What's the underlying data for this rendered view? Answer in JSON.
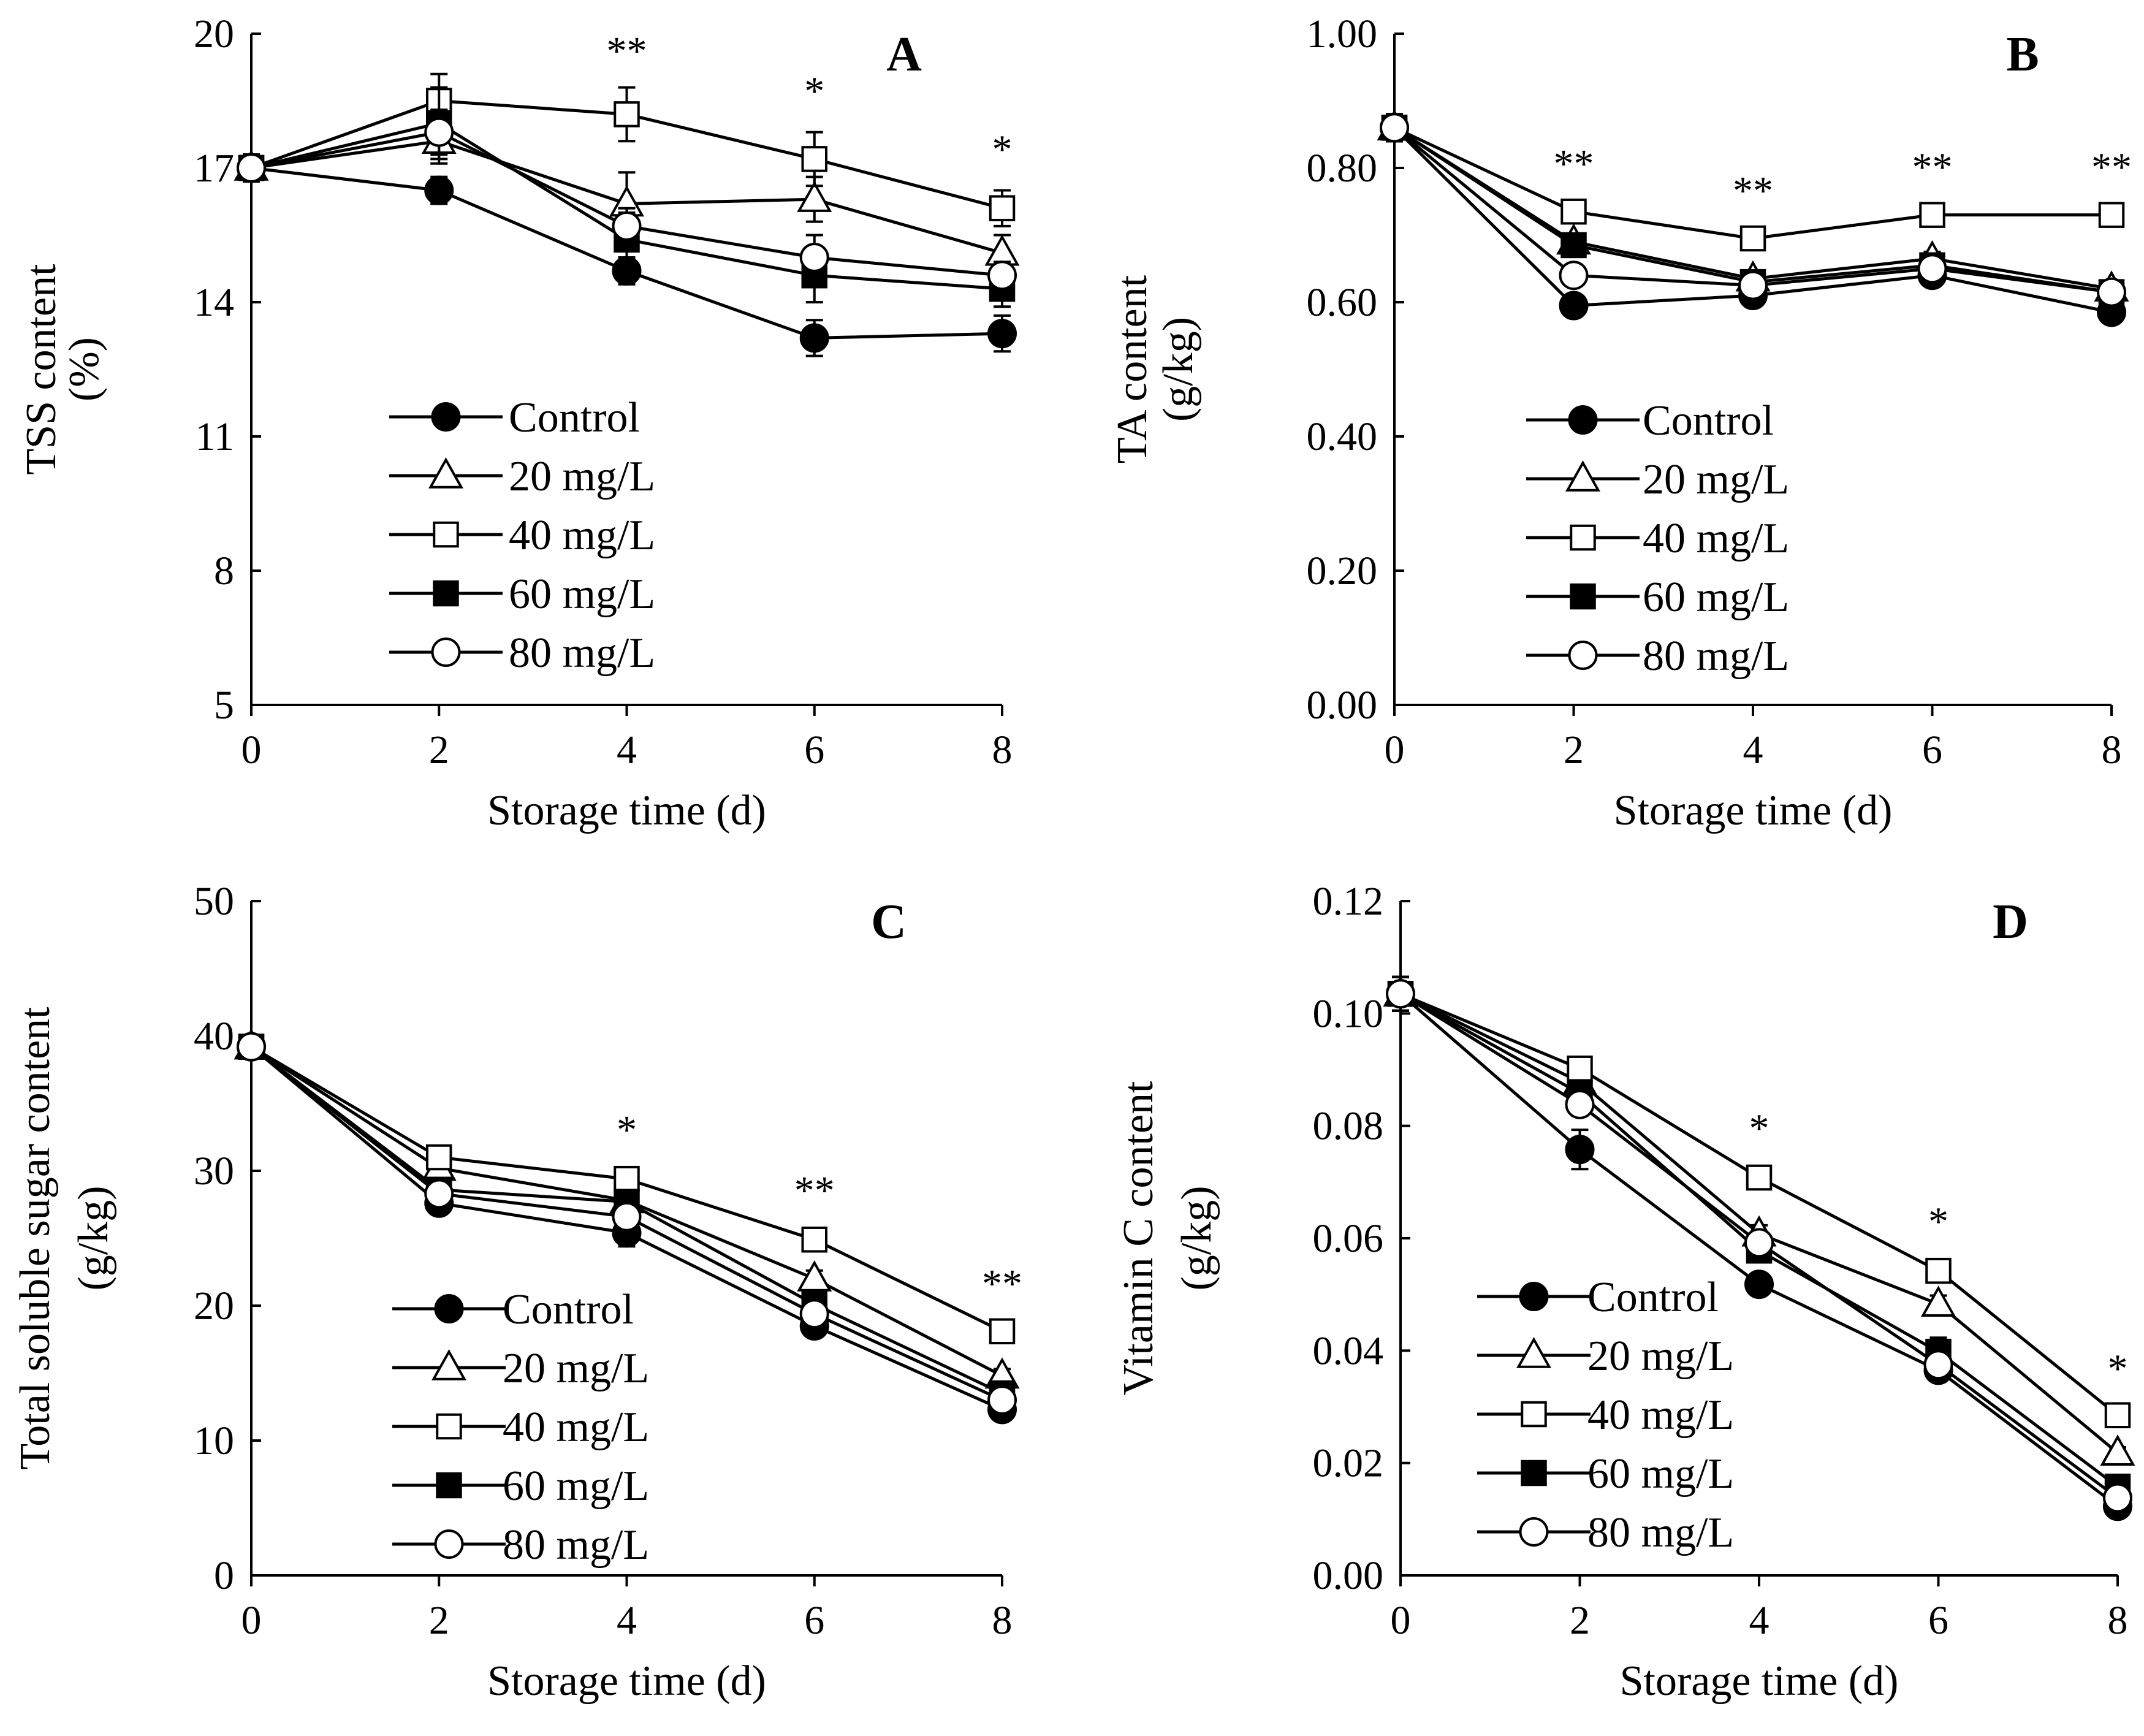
{
  "figure": {
    "series_style": [
      {
        "name": "Control",
        "marker": "circle",
        "filled": true
      },
      {
        "name": "20 mg/L",
        "marker": "triangle",
        "filled": false
      },
      {
        "name": "40 mg/L",
        "marker": "square",
        "filled": false
      },
      {
        "name": "60 mg/L",
        "marker": "square",
        "filled": true
      },
      {
        "name": "80 mg/L",
        "marker": "circle",
        "filled": false
      }
    ],
    "line_color": "#000000",
    "background": "#ffffff"
  },
  "chart_data": [
    {
      "type": "line",
      "panel": "A",
      "xlabel": "Storage time (d)",
      "ylabel_lines": [
        "TSS content",
        "(%)"
      ],
      "x": [
        0,
        2,
        4,
        6,
        8
      ],
      "xlim": [
        0,
        8
      ],
      "xticks": [
        "0",
        "2",
        "4",
        "6",
        "8"
      ],
      "ylim": [
        5,
        20
      ],
      "yticks": [
        5,
        8,
        11,
        14,
        17,
        20
      ],
      "ytick_labels": [
        "5",
        "8",
        "11",
        "14",
        "17",
        "20"
      ],
      "series": [
        {
          "name": "Control",
          "values": [
            17.0,
            16.5,
            14.7,
            13.2,
            13.3
          ],
          "errors": [
            0.3,
            0.3,
            0.3,
            0.4,
            0.4
          ]
        },
        {
          "name": "20 mg/L",
          "values": [
            17.0,
            17.6,
            16.2,
            16.3,
            15.1
          ],
          "errors": [
            0.3,
            0.5,
            0.7,
            0.5,
            0.4
          ]
        },
        {
          "name": "40 mg/L",
          "values": [
            17.0,
            18.5,
            18.2,
            17.2,
            16.1
          ],
          "errors": [
            0.3,
            0.6,
            0.6,
            0.6,
            0.4
          ]
        },
        {
          "name": "60 mg/L",
          "values": [
            17.0,
            18.0,
            15.4,
            14.6,
            14.3
          ],
          "errors": [
            0.3,
            0.8,
            0.6,
            0.6,
            0.4
          ]
        },
        {
          "name": "80 mg/L",
          "values": [
            17.0,
            17.8,
            15.7,
            15.0,
            14.6
          ],
          "errors": [
            0.3,
            0.5,
            0.4,
            0.5,
            0.3
          ]
        }
      ],
      "significance": [
        "",
        "",
        "**",
        "*",
        "*"
      ],
      "legend_position": "lower-left"
    },
    {
      "type": "line",
      "panel": "B",
      "xlabel": "Storage time (d)",
      "ylabel_lines": [
        "TA content",
        "(g/kg)"
      ],
      "x": [
        0,
        2,
        4,
        6,
        8
      ],
      "xlim": [
        0,
        8
      ],
      "xticks": [
        "0",
        "2",
        "4",
        "6",
        "8"
      ],
      "ylim": [
        0,
        1
      ],
      "yticks": [
        0,
        0.2,
        0.4,
        0.6,
        0.8,
        1.0
      ],
      "ytick_labels": [
        "0.00",
        "0.20",
        "0.40",
        "0.60",
        "0.80",
        "1.00"
      ],
      "series": [
        {
          "name": "Control",
          "values": [
            0.86,
            0.595,
            0.61,
            0.64,
            0.585
          ],
          "errors": [
            0.02,
            0.01,
            0.01,
            0.01,
            0.01
          ]
        },
        {
          "name": "20 mg/L",
          "values": [
            0.86,
            0.69,
            0.635,
            0.665,
            0.62
          ],
          "errors": [
            0.02,
            0.01,
            0.01,
            0.01,
            0.01
          ]
        },
        {
          "name": "40 mg/L",
          "values": [
            0.86,
            0.735,
            0.695,
            0.73,
            0.73
          ],
          "errors": [
            0.02,
            0.01,
            0.01,
            0.01,
            0.01
          ]
        },
        {
          "name": "60 mg/L",
          "values": [
            0.86,
            0.685,
            0.63,
            0.655,
            0.615
          ],
          "errors": [
            0.02,
            0.01,
            0.01,
            0.01,
            0.01
          ]
        },
        {
          "name": "80 mg/L",
          "values": [
            0.86,
            0.64,
            0.625,
            0.65,
            0.615
          ],
          "errors": [
            0.02,
            0.01,
            0.01,
            0.01,
            0.01
          ]
        }
      ],
      "significance": [
        "",
        "**",
        "**",
        "**",
        "**"
      ],
      "legend_position": "lower-center"
    },
    {
      "type": "line",
      "panel": "C",
      "xlabel": "Storage time (d)",
      "ylabel_lines": [
        "Total soluble sugar content",
        "(g/kg)"
      ],
      "x": [
        0,
        2,
        4,
        6,
        8
      ],
      "xlim": [
        0,
        8
      ],
      "xticks": [
        "0",
        "2",
        "4",
        "6",
        "8"
      ],
      "ylim": [
        0,
        50
      ],
      "yticks": [
        0,
        10,
        20,
        30,
        40,
        50
      ],
      "ytick_labels": [
        "0",
        "10",
        "20",
        "30",
        "40",
        "50"
      ],
      "series": [
        {
          "name": "Control",
          "values": [
            39.2,
            27.6,
            25.4,
            18.5,
            12.3
          ],
          "errors": [
            0.5,
            0.5,
            1.0,
            0.6,
            0.5
          ]
        },
        {
          "name": "20 mg/L",
          "values": [
            39.2,
            30.2,
            27.8,
            22.0,
            14.8
          ],
          "errors": [
            0.5,
            0.6,
            0.8,
            0.6,
            0.5
          ]
        },
        {
          "name": "40 mg/L",
          "values": [
            39.2,
            31.0,
            29.4,
            24.9,
            18.1
          ],
          "errors": [
            0.5,
            0.6,
            0.6,
            0.6,
            0.5
          ]
        },
        {
          "name": "60 mg/L",
          "values": [
            39.2,
            28.6,
            27.7,
            20.1,
            13.5
          ],
          "errors": [
            0.5,
            0.6,
            0.8,
            0.6,
            0.5
          ]
        },
        {
          "name": "80 mg/L",
          "values": [
            39.2,
            28.3,
            26.6,
            19.4,
            13.0
          ],
          "errors": [
            0.5,
            0.6,
            0.8,
            0.6,
            0.5
          ]
        }
      ],
      "significance": [
        "",
        "",
        "*",
        "**",
        "**"
      ],
      "legend_position": "lower-left"
    },
    {
      "type": "line",
      "panel": "D",
      "xlabel": "Storage time (d)",
      "ylabel_lines": [
        "Vitamin C content",
        "(g/kg)"
      ],
      "x": [
        0,
        2,
        4,
        6,
        8
      ],
      "xlim": [
        0,
        8
      ],
      "xticks": [
        "0",
        "2",
        "4",
        "6",
        "8"
      ],
      "ylim": [
        0,
        0.12
      ],
      "yticks": [
        0,
        0.02,
        0.04,
        0.06,
        0.08,
        0.1,
        0.12
      ],
      "ytick_labels": [
        "0.00",
        "0.02",
        "0.04",
        "0.06",
        "0.08",
        "0.10",
        "0.12"
      ],
      "series": [
        {
          "name": "Control",
          "values": [
            0.1035,
            0.0758,
            0.0518,
            0.0365,
            0.0123
          ],
          "errors": [
            0.003,
            0.0035,
            0.0015,
            0.0015,
            0.001
          ]
        },
        {
          "name": "20 mg/L",
          "values": [
            0.1035,
            0.0878,
            0.0608,
            0.0483,
            0.0218
          ],
          "errors": [
            0.003,
            0.002,
            0.0015,
            0.0015,
            0.001
          ]
        },
        {
          "name": "40 mg/L",
          "values": [
            0.1035,
            0.0902,
            0.0708,
            0.0542,
            0.0285
          ],
          "errors": [
            0.003,
            0.002,
            0.0015,
            0.0015,
            0.001
          ]
        },
        {
          "name": "60 mg/L",
          "values": [
            0.1035,
            0.0858,
            0.0578,
            0.0398,
            0.0158
          ],
          "errors": [
            0.003,
            0.002,
            0.0015,
            0.0025,
            0.001
          ]
        },
        {
          "name": "80 mg/L",
          "values": [
            0.1035,
            0.0838,
            0.0592,
            0.0375,
            0.0138
          ],
          "errors": [
            0.003,
            0.002,
            0.0015,
            0.0015,
            0.001
          ]
        }
      ],
      "significance": [
        "",
        "",
        "*",
        "*",
        "*"
      ],
      "legend_position": "lower-left"
    }
  ]
}
